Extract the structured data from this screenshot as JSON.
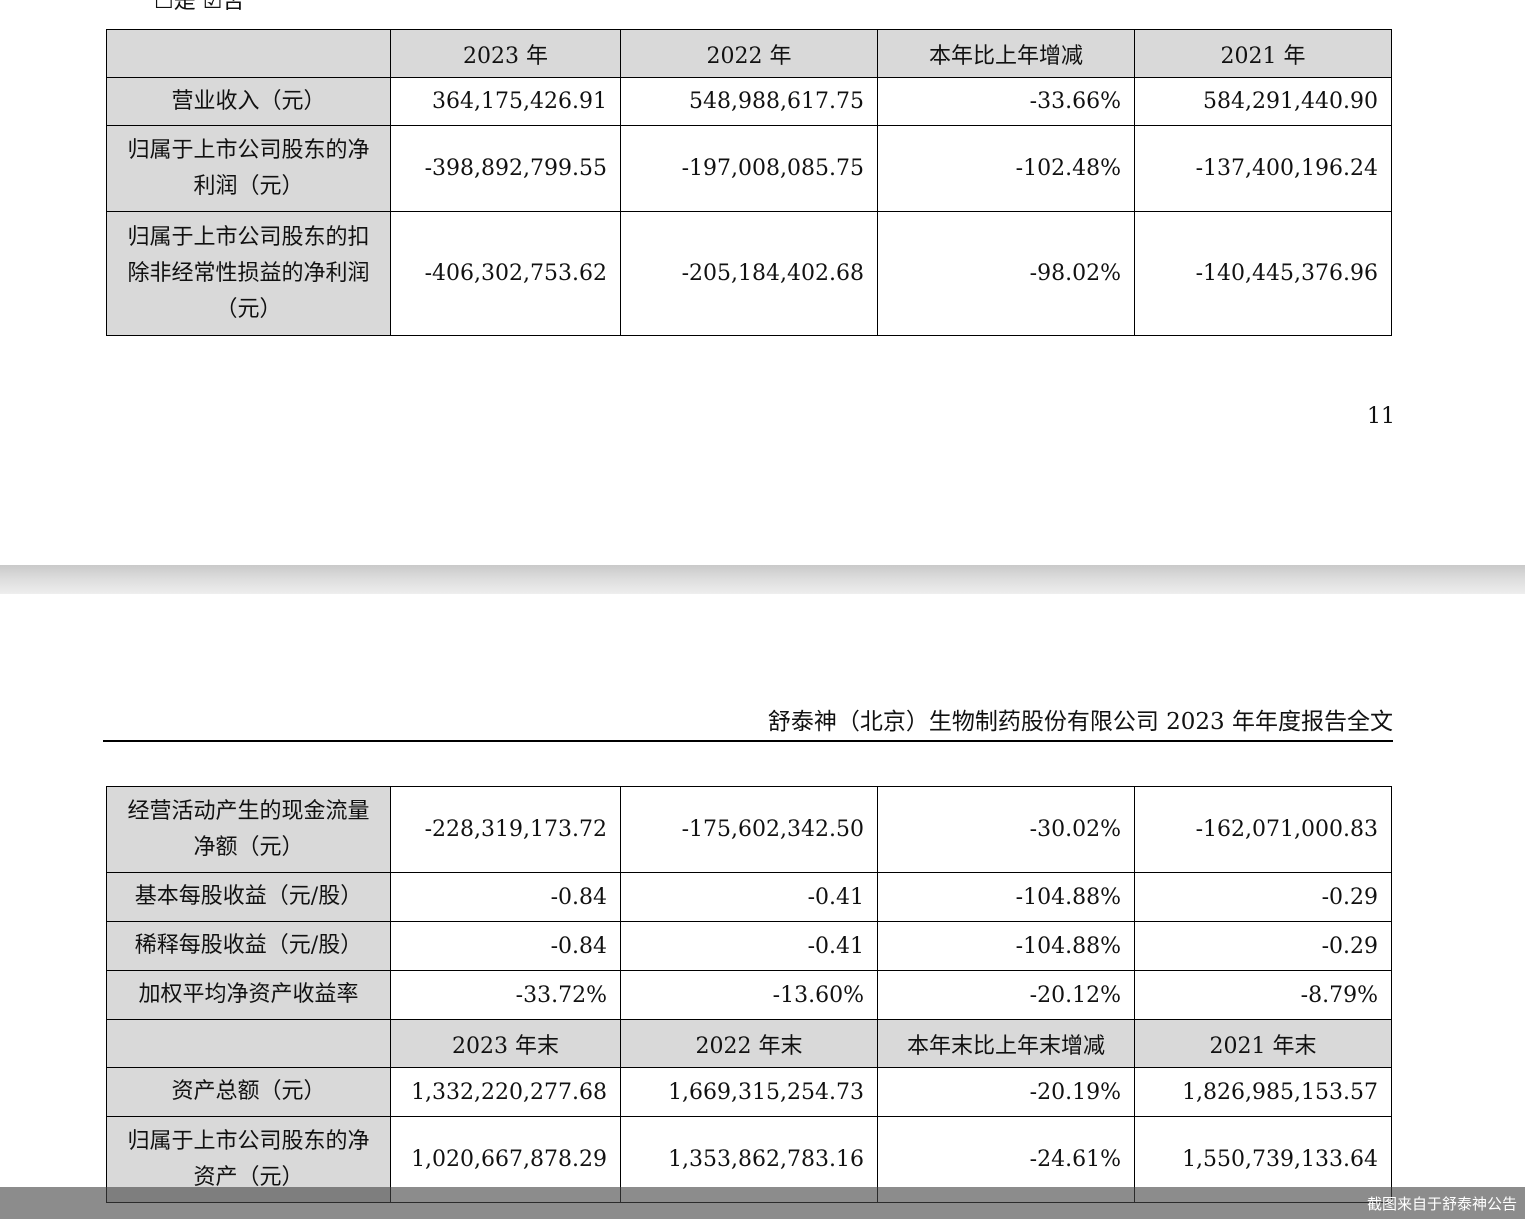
{
  "top_options": {
    "yes_box": "☐",
    "yes_label": "是",
    "no_box": "☑",
    "no_label": "否"
  },
  "table1": {
    "header": [
      "",
      "2023 年",
      "2022 年",
      "本年比上年增减",
      "2021 年"
    ],
    "rows": [
      {
        "label": "营业收入（元）",
        "values": [
          "364,175,426.91",
          "548,988,617.75",
          "-33.66%",
          "584,291,440.90"
        ]
      },
      {
        "label": "归属于上市公司股东的净利润（元）",
        "values": [
          "-398,892,799.55",
          "-197,008,085.75",
          "-102.48%",
          "-137,400,196.24"
        ]
      },
      {
        "label": "归属于上市公司股东的扣除非经常性损益的净利润（元）",
        "values": [
          "-406,302,753.62",
          "-205,184,402.68",
          "-98.02%",
          "-140,445,376.96"
        ]
      }
    ]
  },
  "page_number": "11",
  "report_header": "舒泰神（北京）生物制药股份有限公司 2023 年年度报告全文",
  "table2": {
    "rows": [
      {
        "label": "经营活动产生的现金流量净额（元）",
        "values": [
          "-228,319,173.72",
          "-175,602,342.50",
          "-30.02%",
          "-162,071,000.83"
        ]
      },
      {
        "label": "基本每股收益（元/股）",
        "values": [
          "-0.84",
          "-0.41",
          "-104.88%",
          "-0.29"
        ]
      },
      {
        "label": "稀释每股收益（元/股）",
        "values": [
          "-0.84",
          "-0.41",
          "-104.88%",
          "-0.29"
        ]
      },
      {
        "label": "加权平均净资产收益率",
        "values": [
          "-33.72%",
          "-13.60%",
          "-20.12%",
          "-8.79%"
        ]
      }
    ],
    "subheader": [
      "",
      "2023 年末",
      "2022 年末",
      "本年末比上年末增减",
      "2021 年末"
    ],
    "rows2": [
      {
        "label": "资产总额（元）",
        "values": [
          "1,332,220,277.68",
          "1,669,315,254.73",
          "-20.19%",
          "1,826,985,153.57"
        ]
      },
      {
        "label": "归属于上市公司股东的净资产（元）",
        "values": [
          "1,020,667,878.29",
          "1,353,862,783.16",
          "-24.61%",
          "1,550,739,133.64"
        ]
      }
    ]
  },
  "watermark": "截图来自于舒泰神公告"
}
